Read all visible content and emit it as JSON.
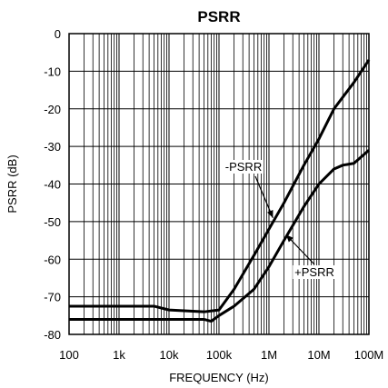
{
  "chart_data": {
    "type": "line",
    "title": "PSRR",
    "xlabel": "FREQUENCY (Hz)",
    "ylabel": "PSRR (dB)",
    "x_scale": "log",
    "xlim": [
      100,
      100000000
    ],
    "ylim": [
      -80,
      0
    ],
    "grid": true,
    "x_ticks": [
      100,
      1000,
      10000,
      100000,
      1000000,
      10000000,
      100000000
    ],
    "x_tick_labels": [
      "100",
      "1k",
      "10k",
      "100k",
      "1M",
      "10M",
      "100M"
    ],
    "y_ticks": [
      0,
      -10,
      -20,
      -30,
      -40,
      -50,
      -60,
      -70,
      -80
    ],
    "y_tick_labels": [
      "0",
      "-10",
      "-20",
      "-30",
      "-40",
      "-50",
      "-60",
      "-70",
      "-80"
    ],
    "series": [
      {
        "name": "-PSRR",
        "x": [
          100,
          1000,
          5000,
          10000,
          50000,
          100000,
          200000,
          500000,
          1000000,
          2000000,
          5000000,
          10000000,
          20000000,
          50000000,
          100000000
        ],
        "y": [
          -72.5,
          -72.5,
          -72.5,
          -73.5,
          -74,
          -73.5,
          -68,
          -59,
          -52,
          -45,
          -35,
          -28,
          -20,
          -13,
          -7
        ]
      },
      {
        "name": "+PSRR",
        "x": [
          100,
          1000,
          10000,
          50000,
          70000,
          100000,
          200000,
          500000,
          1000000,
          2000000,
          5000000,
          10000000,
          20000000,
          30000000,
          50000000,
          100000000
        ],
        "y": [
          -76,
          -76,
          -76,
          -76,
          -76.5,
          -75,
          -72.5,
          -68,
          -62,
          -55,
          -46,
          -40,
          -36,
          -35,
          -34.5,
          -31
        ]
      }
    ],
    "annotations": [
      {
        "text": "-PSRR",
        "points_to": {
          "x": 1200000,
          "y": -49
        }
      },
      {
        "text": "+PSRR",
        "points_to": {
          "x": 2200000,
          "y": -53.5
        }
      }
    ]
  }
}
